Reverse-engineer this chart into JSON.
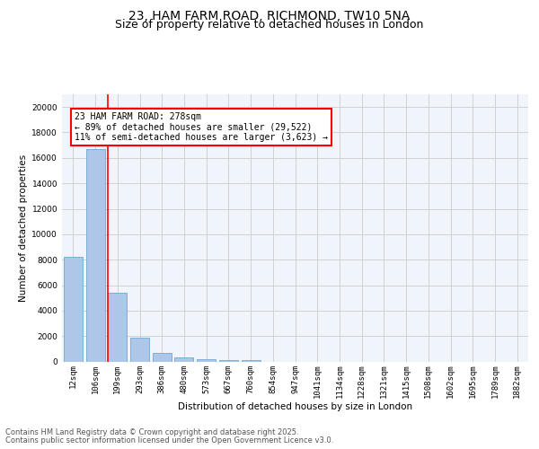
{
  "title_line1": "23, HAM FARM ROAD, RICHMOND, TW10 5NA",
  "title_line2": "Size of property relative to detached houses in London",
  "xlabel": "Distribution of detached houses by size in London",
  "ylabel": "Number of detached properties",
  "categories": [
    "12sqm",
    "106sqm",
    "199sqm",
    "293sqm",
    "386sqm",
    "480sqm",
    "573sqm",
    "667sqm",
    "760sqm",
    "854sqm",
    "947sqm",
    "1041sqm",
    "1134sqm",
    "1228sqm",
    "1321sqm",
    "1415sqm",
    "1508sqm",
    "1602sqm",
    "1695sqm",
    "1789sqm",
    "1882sqm"
  ],
  "values": [
    8200,
    16700,
    5400,
    1850,
    650,
    330,
    190,
    110,
    80,
    0,
    0,
    0,
    0,
    0,
    0,
    0,
    0,
    0,
    0,
    0,
    0
  ],
  "bar_color": "#aec6e8",
  "bar_edge_color": "#5a9fd4",
  "vline_color": "red",
  "vline_pos": 1.575,
  "annotation_text": "23 HAM FARM ROAD: 278sqm\n← 89% of detached houses are smaller (29,522)\n11% of semi-detached houses are larger (3,623) →",
  "ylim": [
    0,
    21000
  ],
  "yticks": [
    0,
    2000,
    4000,
    6000,
    8000,
    10000,
    12000,
    14000,
    16000,
    18000,
    20000
  ],
  "grid_color": "#cccccc",
  "bg_color": "#f0f4fb",
  "footer_line1": "Contains HM Land Registry data © Crown copyright and database right 2025.",
  "footer_line2": "Contains public sector information licensed under the Open Government Licence v3.0.",
  "title_fontsize": 10,
  "subtitle_fontsize": 9,
  "axis_label_fontsize": 7.5,
  "tick_fontsize": 6.5,
  "annotation_fontsize": 7,
  "footer_fontsize": 6
}
